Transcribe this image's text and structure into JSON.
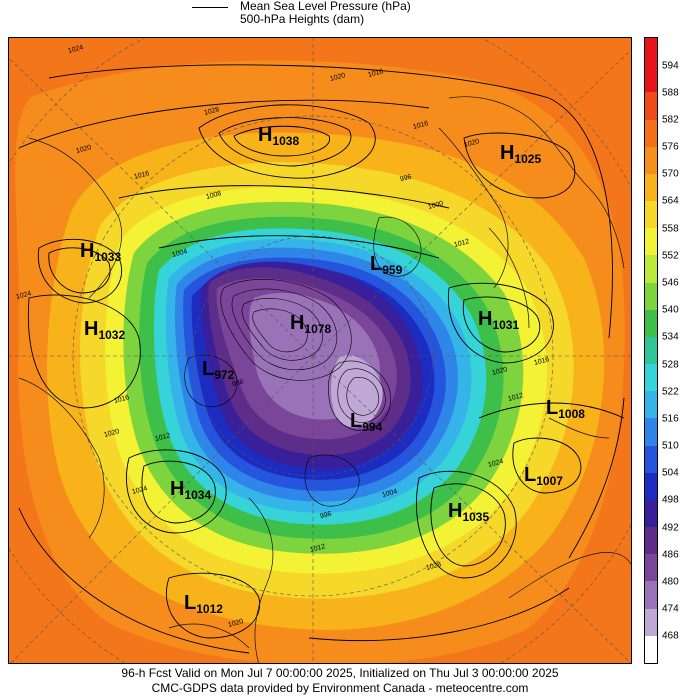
{
  "legend": {
    "line_label": "Mean Sea Level Pressure (hPa)",
    "fill_label": "500-hPa Heights (dam)"
  },
  "colorbar": {
    "levels": [
      "594",
      "588",
      "582",
      "576",
      "570",
      "564",
      "558",
      "552",
      "546",
      "540",
      "534",
      "528",
      "522",
      "516",
      "510",
      "504",
      "498",
      "492",
      "486",
      "480",
      "474",
      "468"
    ],
    "colors": [
      "#e8141c",
      "#f04a18",
      "#f36f1a",
      "#f6901c",
      "#f8b21a",
      "#f6d82a",
      "#f3f234",
      "#bce83c",
      "#7ed43e",
      "#3dbf49",
      "#2fc49a",
      "#36d3d8",
      "#34b4e8",
      "#2f86e8",
      "#2455dc",
      "#1c2cc0",
      "#3a1f9a",
      "#5e2d8a",
      "#7b469a",
      "#9a72b8",
      "#c0a8d6",
      "#e9e1f1"
    ]
  },
  "centres": [
    {
      "type": "H",
      "value": "1038"
    },
    {
      "type": "H",
      "value": "1025"
    },
    {
      "type": "H",
      "value": "1033"
    },
    {
      "type": "L",
      "value": "959"
    },
    {
      "type": "H",
      "value": "1032"
    },
    {
      "type": "H",
      "value": "1031"
    },
    {
      "type": "H",
      "value": "1078"
    },
    {
      "type": "L",
      "value": "972"
    },
    {
      "type": "L",
      "value": "1008"
    },
    {
      "type": "L",
      "value": "994"
    },
    {
      "type": "L",
      "value": "1007"
    },
    {
      "type": "H",
      "value": "1034"
    },
    {
      "type": "H",
      "value": "1035"
    },
    {
      "type": "L",
      "value": "1012"
    }
  ],
  "isobar_labels": [
    "1024",
    "1020",
    "1016",
    "1016",
    "1028",
    "1020",
    "1016",
    "1008",
    "1004",
    "996",
    "1000",
    "1020",
    "1024",
    "1012",
    "1016",
    "1020",
    "1012",
    "1024",
    "1028",
    "1016",
    "1020",
    "1012",
    "1024",
    "1012",
    "1020",
    "996",
    "988",
    "1004"
  ],
  "footer": {
    "line1": "96-h Fcst Valid on Mon Jul  7 00:00:00 2025, Initialized on Thu Jul  3 00:00:00 2025",
    "line2": "CMC-GDPS data provided by Environment Canada - meteocentre.com"
  }
}
